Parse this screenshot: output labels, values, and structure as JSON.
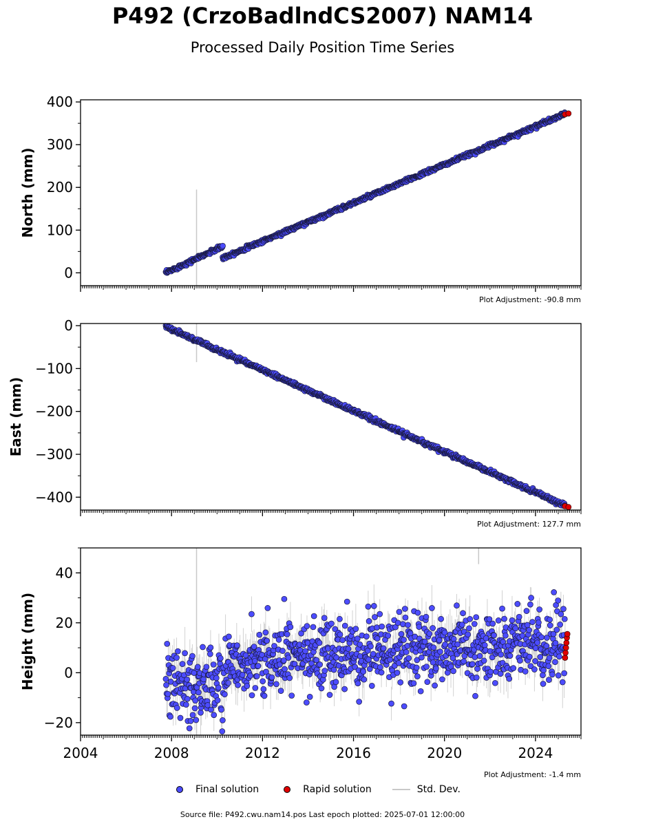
{
  "header": {
    "title": "P492 (CrzoBadlndCS2007) NAM14",
    "subtitle": "Processed Daily Position Time Series"
  },
  "legend": {
    "final_label": "Final solution",
    "rapid_label": "Rapid solution",
    "std_label": "Std. Dev.",
    "final_color": "#4c4cff",
    "rapid_color": "#e00000",
    "std_color": "#c8c8c8"
  },
  "footer": {
    "text": "Source file: P492.cwu.nam14.pos  Last epoch plotted: 2025-07-01 12:00:00"
  },
  "chart_data": [
    {
      "type": "scatter",
      "ylabel": "North (mm)",
      "xlim": [
        2004.0,
        2026.0
      ],
      "ylim": [
        -30,
        405
      ],
      "yticks": [
        0,
        100,
        200,
        300,
        400
      ],
      "ytick_labels": [
        "0",
        "100",
        "200",
        "300",
        "400"
      ],
      "adjustment": "Plot Adjustment: -90.8 mm",
      "series": [
        {
          "name": "Final solution",
          "segments": [
            {
              "start": [
                2007.75,
                0
              ],
              "end": [
                2010.25,
                62
              ],
              "noise": 2.0
            },
            {
              "start": [
                2010.25,
                35
              ],
              "end": [
                2025.3,
                372
              ],
              "noise": 2.0
            }
          ]
        },
        {
          "name": "Rapid solution",
          "x": [
            2025.3,
            2025.45
          ],
          "y": [
            371,
            373
          ]
        }
      ],
      "outliers": [
        [
          2009.1,
          30,
          165
        ]
      ]
    },
    {
      "type": "scatter",
      "ylabel": "East (mm)",
      "xlim": [
        2004.0,
        2026.0
      ],
      "ylim": [
        -430,
        5
      ],
      "yticks": [
        0,
        -100,
        -200,
        -300,
        -400
      ],
      "ytick_labels": [
        "0",
        "−100",
        "−200",
        "−300",
        "−400"
      ],
      "adjustment": "Plot Adjustment: 127.7 mm",
      "series": [
        {
          "name": "Final solution",
          "segments": [
            {
              "start": [
                2007.75,
                -2
              ],
              "end": [
                2025.3,
                -420
              ],
              "noise": 2.2
            }
          ]
        },
        {
          "name": "Rapid solution",
          "x": [
            2025.3,
            2025.45
          ],
          "y": [
            -421,
            -423
          ]
        }
      ],
      "outliers": [
        [
          2009.1,
          -30,
          55
        ]
      ]
    },
    {
      "type": "scatter",
      "ylabel": "Height (mm)",
      "xlabel_ticks": [
        "2004",
        "2008",
        "2012",
        "2016",
        "2020",
        "2024"
      ],
      "xticks": [
        2004,
        2008,
        2012,
        2016,
        2020,
        2024
      ],
      "xlim": [
        2004.0,
        2026.0
      ],
      "ylim": [
        -25,
        50
      ],
      "yticks": [
        40,
        20,
        0,
        -20
      ],
      "ytick_labels": [
        "40",
        "20",
        "0",
        "−20"
      ],
      "adjustment": "Plot Adjustment: -1.4 mm",
      "series": [
        {
          "name": "Final solution",
          "segments": [
            {
              "start": [
                2007.75,
                -5
              ],
              "end": [
                2010.5,
                -5
              ],
              "noise": 7.0
            },
            {
              "start": [
                2010.5,
                5
              ],
              "end": [
                2025.3,
                12
              ],
              "noise": 7.0
            }
          ]
        },
        {
          "name": "Rapid solution",
          "x": [
            2025.3,
            2025.32,
            2025.34,
            2025.36,
            2025.38,
            2025.4
          ],
          "y": [
            6,
            8,
            10,
            12,
            14,
            15.5
          ]
        }
      ],
      "outliers": [
        [
          2009.1,
          0,
          50
        ],
        [
          2021.5,
          48.5,
          5
        ]
      ]
    }
  ]
}
